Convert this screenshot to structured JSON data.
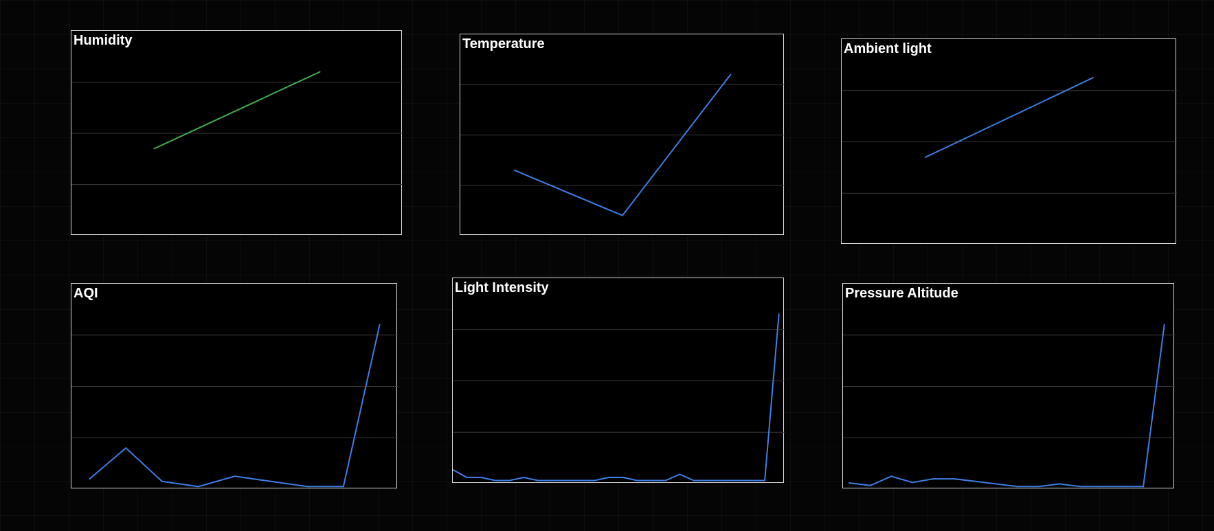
{
  "colors": {
    "background": "#050505",
    "panel_background": "#000000",
    "panel_border": "#d9d9d9",
    "gridline": "#3a3a3a",
    "green_series": "#3fae4f",
    "blue_series": "#3d7fe6"
  },
  "chart_data": [
    {
      "id": "humidity",
      "type": "line",
      "title": "Humidity",
      "color": "#3fae4f",
      "x": [
        0,
        1
      ],
      "values": [
        1.7,
        3.2
      ],
      "ylim": [
        0,
        4
      ],
      "xlim": [
        -0.5,
        1.5
      ],
      "grid": true,
      "xlabel": "",
      "ylabel": ""
    },
    {
      "id": "temperature",
      "type": "line",
      "title": "Temperature",
      "color": "#3d7fe6",
      "x": [
        0,
        1,
        2
      ],
      "values": [
        1.3,
        0.4,
        3.2
      ],
      "ylim": [
        0,
        4
      ],
      "xlim": [
        -0.5,
        2.5
      ],
      "grid": true,
      "xlabel": "",
      "ylabel": ""
    },
    {
      "id": "ambient-light",
      "type": "line",
      "title": "Ambient light",
      "color": "#3d7fe6",
      "x": [
        0,
        1
      ],
      "values": [
        1.7,
        3.25
      ],
      "ylim": [
        0,
        4
      ],
      "xlim": [
        -0.5,
        1.5
      ],
      "grid": true,
      "xlabel": "",
      "ylabel": ""
    },
    {
      "id": "aqi",
      "type": "line",
      "title": "AQI",
      "color": "#3d7fe6",
      "x": [
        0,
        1,
        2,
        3,
        4,
        5,
        6,
        7,
        8
      ],
      "values": [
        0.2,
        0.8,
        0.15,
        0.05,
        0.25,
        0.15,
        0.05,
        0.05,
        3.2
      ],
      "ylim": [
        0,
        4
      ],
      "xlim": [
        -0.5,
        8.5
      ],
      "grid": true,
      "xlabel": "",
      "ylabel": ""
    },
    {
      "id": "light-intensity",
      "type": "line",
      "title": "Light Intensity",
      "color": "#3d7fe6",
      "x": [
        0,
        1,
        2,
        3,
        4,
        5,
        6,
        7,
        8,
        9,
        10,
        11,
        12,
        13,
        14,
        15,
        16,
        17,
        18,
        19,
        20,
        21,
        22,
        23
      ],
      "values": [
        0.27,
        0.12,
        0.12,
        0.06,
        0.06,
        0.12,
        0.06,
        0.06,
        0.06,
        0.06,
        0.06,
        0.12,
        0.12,
        0.06,
        0.06,
        0.06,
        0.18,
        0.06,
        0.06,
        0.06,
        0.06,
        0.06,
        0.06,
        3.3
      ],
      "ylim": [
        0,
        4
      ],
      "xlim": [
        0,
        23.4
      ],
      "grid": true,
      "xlabel": "",
      "ylabel": ""
    },
    {
      "id": "pressure-altitude",
      "type": "line",
      "title": "Pressure Altitude",
      "color": "#3d7fe6",
      "x": [
        0,
        1,
        2,
        3,
        4,
        5,
        6,
        7,
        8,
        9,
        10,
        11,
        12,
        13,
        14,
        15
      ],
      "values": [
        0.12,
        0.07,
        0.25,
        0.13,
        0.2,
        0.2,
        0.15,
        0.1,
        0.05,
        0.05,
        0.1,
        0.05,
        0.05,
        0.05,
        0.05,
        3.2
      ],
      "ylim": [
        0,
        4
      ],
      "xlim": [
        -0.3,
        15.5
      ],
      "grid": true,
      "xlabel": "",
      "ylabel": ""
    }
  ]
}
